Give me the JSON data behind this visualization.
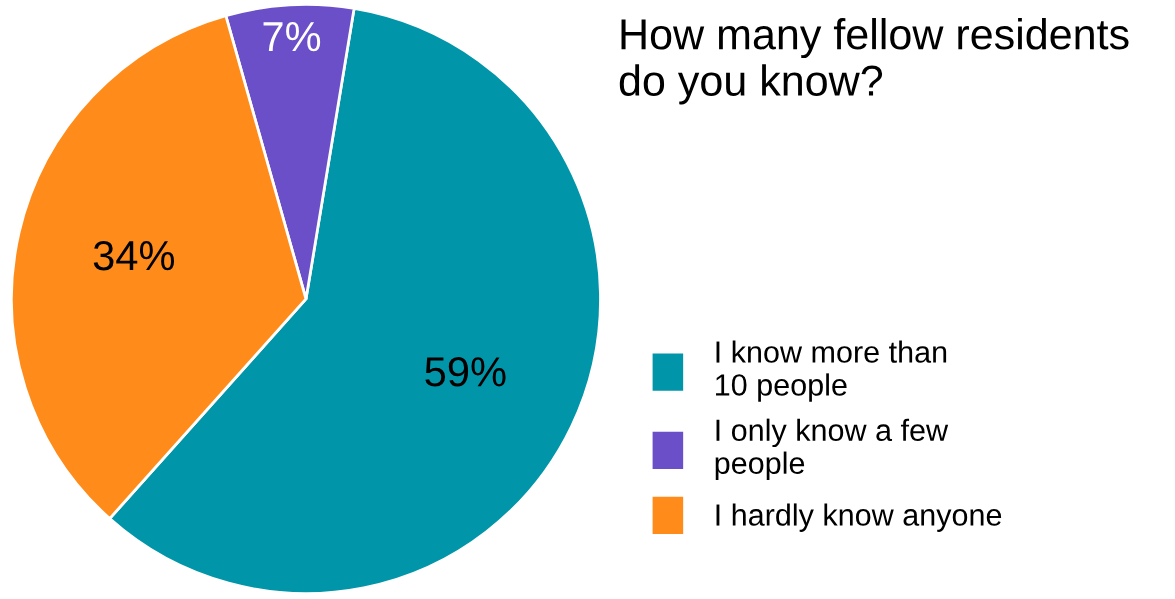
{
  "chart_data": {
    "type": "pie",
    "title": "How many fellow residents do you know?",
    "categories": [
      "I know more than 10 people",
      "I only know a few people",
      "I hardly know anyone"
    ],
    "values": [
      59,
      7,
      34
    ],
    "value_labels": [
      "59%",
      "7%",
      "34%"
    ],
    "colors": [
      "#0095a8",
      "#6a4fc8",
      "#ff8c1a"
    ],
    "legend": "right"
  }
}
